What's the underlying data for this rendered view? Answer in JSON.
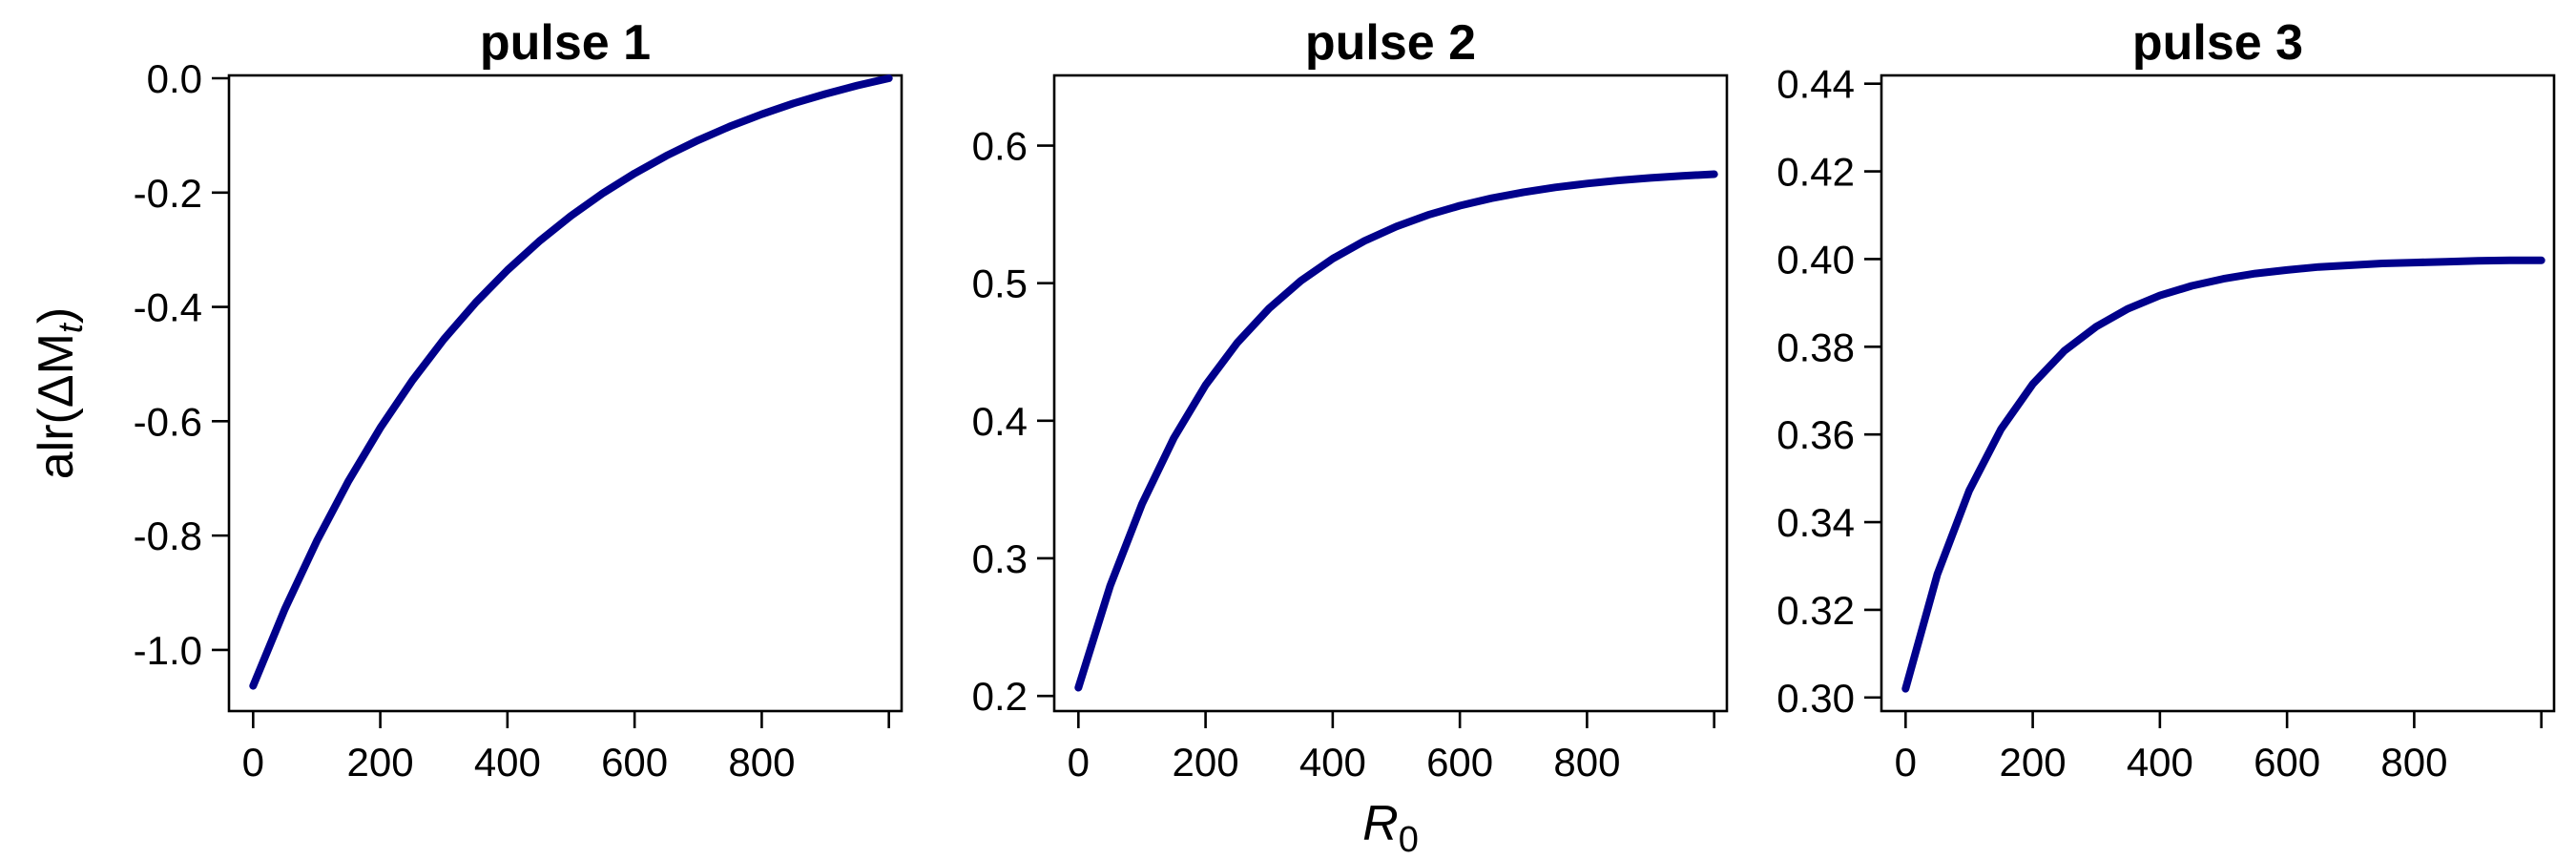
{
  "chart_data": [
    {
      "type": "line",
      "title": "pulse 1",
      "ylabel": "alr(ΔM",
      "ylabel_sub": "t",
      "ylabel_close": ")",
      "xlabel": "",
      "xlim": [
        -38,
        1020
      ],
      "ylim": [
        -1.107,
        0.005
      ],
      "xticks": [
        0,
        200,
        400,
        600,
        800,
        1000
      ],
      "xtick_labels": [
        "0",
        "200",
        "400",
        "600",
        "800",
        ""
      ],
      "yticks": [
        0.0,
        -0.2,
        -0.4,
        -0.6,
        -0.8,
        -1.0
      ],
      "ytick_labels": [
        "0.0",
        "-0.2",
        "-0.4",
        "-0.6",
        "-0.8",
        "-1.0"
      ],
      "color": "#00008B",
      "x": [
        0,
        50,
        100,
        150,
        200,
        250,
        300,
        350,
        400,
        450,
        500,
        550,
        600,
        650,
        700,
        750,
        800,
        850,
        900,
        950,
        1000
      ],
      "y": [
        -1.063,
        -0.9284,
        -0.8096,
        -0.7045,
        -0.6116,
        -0.5294,
        -0.4567,
        -0.3926,
        -0.3356,
        -0.2852,
        -0.2406,
        -0.2012,
        -0.1664,
        -0.1356,
        -0.1083,
        -0.0842,
        -0.0629,
        -0.044,
        -0.0275,
        -0.0127,
        0.0
      ]
    },
    {
      "type": "line",
      "title": "pulse 2",
      "ylabel": "",
      "xlabel": "R",
      "xlabel_sub": "0",
      "xlim": [
        -38,
        1020
      ],
      "ylim": [
        0.189,
        0.651
      ],
      "xticks": [
        0,
        200,
        400,
        600,
        800,
        1000
      ],
      "xtick_labels": [
        "0",
        "200",
        "400",
        "600",
        "800",
        ""
      ],
      "yticks": [
        0.2,
        0.3,
        0.4,
        0.5,
        0.6
      ],
      "ytick_labels": [
        "0.2",
        "0.3",
        "0.4",
        "0.5",
        "0.6"
      ],
      "color": "#00008B",
      "x": [
        0,
        50,
        100,
        150,
        200,
        250,
        300,
        350,
        400,
        450,
        500,
        550,
        600,
        650,
        700,
        750,
        800,
        850,
        900,
        950,
        1000
      ],
      "y": [
        0.206,
        0.28,
        0.3395,
        0.3874,
        0.4259,
        0.4568,
        0.4817,
        0.5017,
        0.5178,
        0.5307,
        0.5411,
        0.5496,
        0.5563,
        0.5617,
        0.5661,
        0.5696,
        0.5724,
        0.5747,
        0.5765,
        0.578,
        0.5792
      ]
    },
    {
      "type": "line",
      "title": "pulse 3",
      "ylabel": "",
      "xlabel": "",
      "xlim": [
        -38,
        1020
      ],
      "ylim": [
        0.2969,
        0.4419
      ],
      "xticks": [
        0,
        200,
        400,
        600,
        800,
        1000
      ],
      "xtick_labels": [
        "0",
        "200",
        "400",
        "600",
        "800",
        ""
      ],
      "yticks": [
        0.3,
        0.32,
        0.34,
        0.36,
        0.38,
        0.4,
        0.42,
        0.44
      ],
      "ytick_labels": [
        "0.30",
        "0.32",
        "0.34",
        "0.36",
        "0.38",
        "0.40",
        "0.42",
        "0.44"
      ],
      "color": "#00008B",
      "x": [
        0,
        50,
        100,
        150,
        200,
        250,
        300,
        350,
        400,
        450,
        500,
        550,
        600,
        650,
        700,
        750,
        800,
        850,
        900,
        950,
        1000
      ],
      "y": [
        0.302,
        0.3281,
        0.3472,
        0.3612,
        0.3715,
        0.3791,
        0.3846,
        0.3887,
        0.3917,
        0.3939,
        0.3955,
        0.3967,
        0.3975,
        0.3982,
        0.3986,
        0.399,
        0.3992,
        0.3994,
        0.3996,
        0.3997,
        0.3997
      ]
    }
  ]
}
